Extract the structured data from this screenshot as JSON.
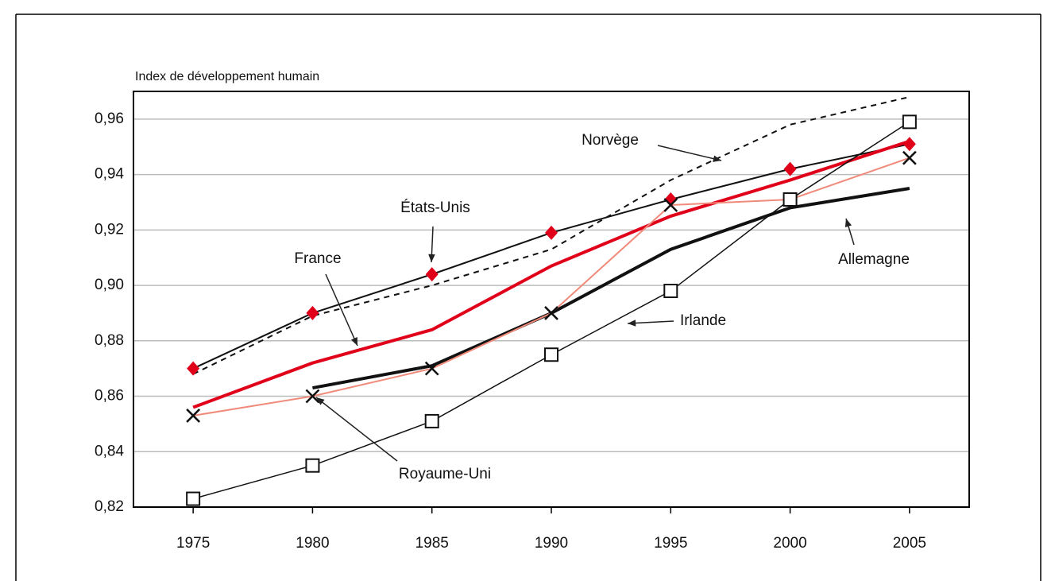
{
  "chart_data": {
    "type": "line",
    "y_label": "Index de développement humain",
    "x": [
      1975,
      1980,
      1985,
      1990,
      1995,
      2000,
      2005
    ],
    "xlim": [
      1972.5,
      2007.5
    ],
    "xticks": [
      1975,
      1980,
      1985,
      1990,
      1995,
      2000,
      2005
    ],
    "ylim": [
      0.82,
      0.97
    ],
    "yticks": [
      {
        "value": 0.82,
        "label": "0,82"
      },
      {
        "value": 0.84,
        "label": "0,84"
      },
      {
        "value": 0.86,
        "label": "0,86"
      },
      {
        "value": 0.88,
        "label": "0,88"
      },
      {
        "value": 0.9,
        "label": "0,90"
      },
      {
        "value": 0.92,
        "label": "0,92"
      },
      {
        "value": 0.94,
        "label": "0,94"
      },
      {
        "value": 0.96,
        "label": "0,96"
      }
    ],
    "grid": true,
    "series": [
      {
        "name": "Norvège",
        "color": "#111111",
        "dashed": true,
        "linewidth": 2,
        "values": [
          0.868,
          0.889,
          0.9,
          0.913,
          0.938,
          0.958,
          0.968
        ]
      },
      {
        "name": "États-Unis",
        "color": "#111111",
        "linewidth": 2,
        "marker": "diamond",
        "marker_color": "#e0001a",
        "values": [
          0.87,
          0.89,
          0.904,
          0.919,
          0.931,
          0.942,
          0.951
        ]
      },
      {
        "name": "France",
        "color": "#e0001a",
        "linewidth": 4,
        "values": [
          0.856,
          0.872,
          0.884,
          0.907,
          0.925,
          0.938,
          0.952
        ]
      },
      {
        "name": "Allemagne",
        "color": "#111111",
        "linewidth": 4,
        "values": [
          null,
          0.863,
          0.871,
          0.89,
          0.913,
          0.928,
          0.935
        ]
      },
      {
        "name": "Royaume-Uni",
        "color": "#f08a7a",
        "linewidth": 2,
        "marker": "x",
        "marker_color": "#111111",
        "values": [
          0.853,
          0.86,
          0.87,
          0.89,
          0.929,
          0.931,
          0.946
        ]
      },
      {
        "name": "Irlande",
        "color": "#111111",
        "linewidth": 1.5,
        "marker": "square",
        "marker_color": "#111111",
        "values": [
          0.823,
          0.835,
          0.851,
          0.875,
          0.898,
          0.931,
          0.959
        ]
      }
    ]
  }
}
